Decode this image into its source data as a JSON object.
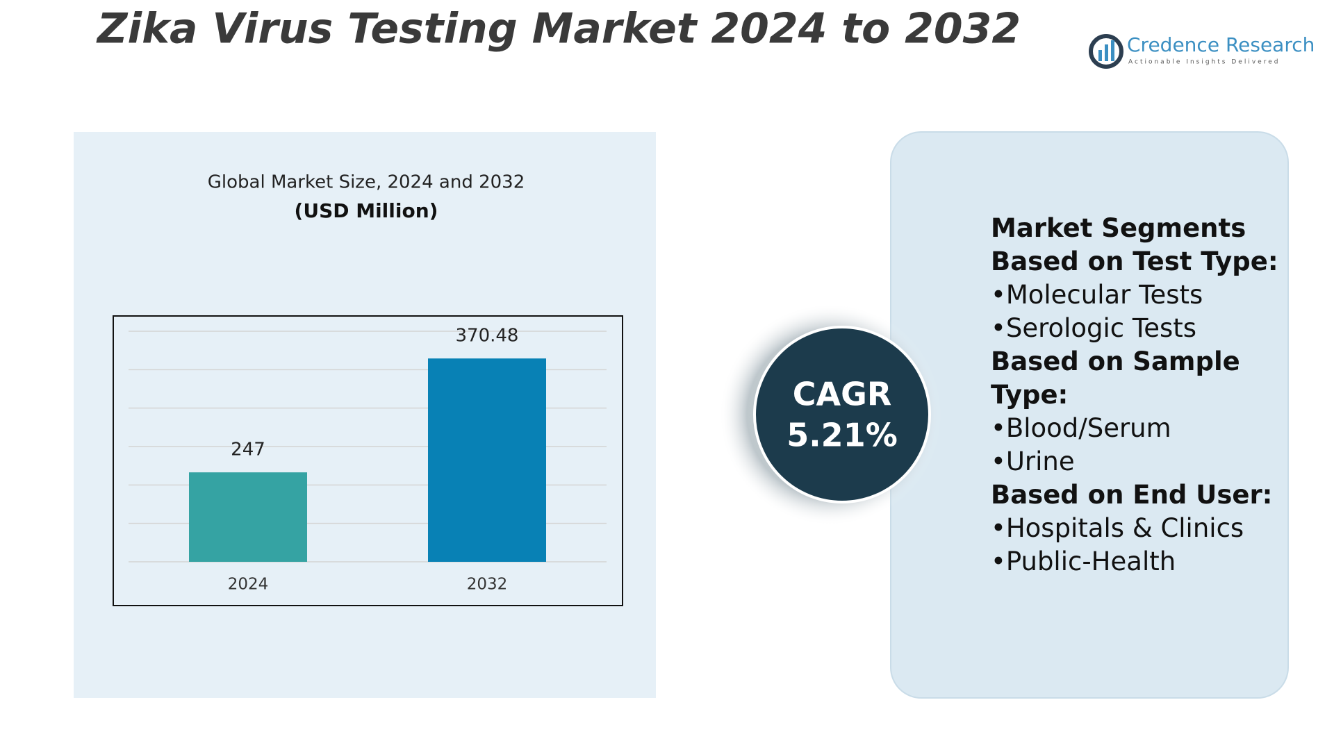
{
  "header": {
    "title": "Zika Virus Testing Market 2024 to 2032",
    "logo_name": "Credence Research",
    "logo_tagline": "Actionable Insights Delivered"
  },
  "chart_data": {
    "type": "bar",
    "title": "Global Market Size, 2024 and 2032",
    "subtitle": "(USD Million)",
    "categories": [
      "2024",
      "2032"
    ],
    "series": [
      {
        "name": null,
        "values": [
          247,
          370.48
        ],
        "colors": [
          "#35a3a3",
          "#0881b5"
        ]
      }
    ],
    "ylim": [
      150,
      400
    ],
    "grid": true
  },
  "cagr": {
    "label": "CAGR",
    "value": "5.21%"
  },
  "segments": {
    "title": "Market Segments",
    "groups": [
      {
        "heading": "Based on Test Type:",
        "items": [
          "Molecular Tests",
          "Serologic Tests"
        ]
      },
      {
        "heading": "Based on Sample Type:",
        "items": [
          "Blood/Serum",
          "Urine"
        ]
      },
      {
        "heading": "Based on End User:",
        "items": [
          "Hospitals & Clinics",
          "Public-Health"
        ]
      }
    ]
  }
}
